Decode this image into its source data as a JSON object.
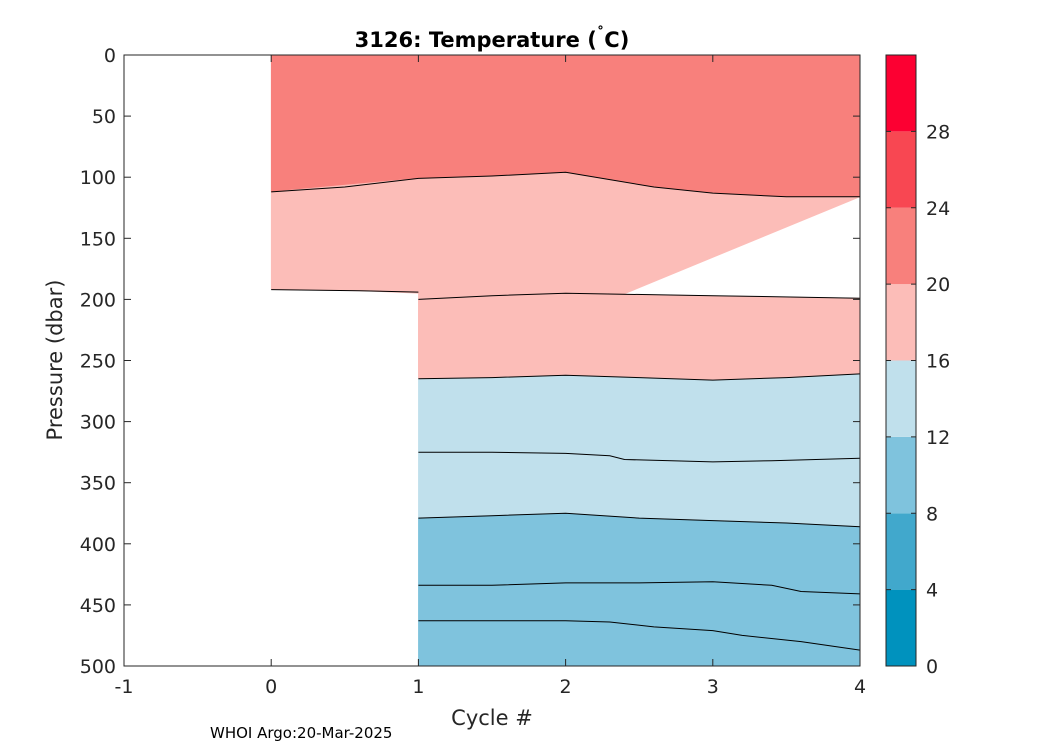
{
  "chart_data": {
    "type": "contour",
    "title_main": "3126:  Temperature (",
    "title_degree": "˚",
    "title_end": "C)",
    "xlabel": "Cycle #",
    "ylabel": "Pressure (dbar)",
    "xlim": [
      -1,
      4
    ],
    "ylim": [
      0,
      500
    ],
    "y_reversed": true,
    "x_ticks": [
      "-1",
      "0",
      "1",
      "2",
      "3",
      "4"
    ],
    "y_ticks": [
      "0",
      "50",
      "100",
      "150",
      "200",
      "250",
      "300",
      "350",
      "400",
      "450",
      "500"
    ],
    "colorbar": {
      "range": [
        0,
        32
      ],
      "tick_labels": [
        "0",
        "4",
        "8",
        "12",
        "16",
        "20",
        "24",
        "28"
      ],
      "bands": [
        {
          "from": 0,
          "to": 4,
          "color": "#0092be"
        },
        {
          "from": 4,
          "to": 8,
          "color": "#41a8cc"
        },
        {
          "from": 8,
          "to": 12,
          "color": "#7fc3dd"
        },
        {
          "from": 12,
          "to": 16,
          "color": "#c0e0ec"
        },
        {
          "from": 16,
          "to": 20,
          "color": "#fcbdb8"
        },
        {
          "from": 20,
          "to": 24,
          "color": "#f8807c"
        },
        {
          "from": 24,
          "to": 28,
          "color": "#f84752"
        },
        {
          "from": 28,
          "to": 32,
          "color": "#fc0032"
        }
      ]
    },
    "data_extent": [
      {
        "x": 0,
        "bottom": 192
      },
      {
        "x": 1,
        "bottom": 500
      }
    ],
    "fill_regions": [
      {
        "name": "20-24 band",
        "color": "#f8807c",
        "top": [
          [
            0,
            0
          ],
          [
            4,
            0
          ]
        ],
        "bottom": [
          [
            0,
            112
          ],
          [
            1,
            101
          ],
          [
            1.5,
            99
          ],
          [
            2,
            96
          ],
          [
            2.3,
            102
          ],
          [
            2.6,
            108
          ],
          [
            3,
            113
          ],
          [
            3.5,
            116
          ],
          [
            4,
            116
          ]
        ]
      },
      {
        "name": "16-20 band upper",
        "color": "#fcbdb8",
        "top": [
          [
            0,
            112
          ],
          [
            1,
            101
          ],
          [
            1.5,
            99
          ],
          [
            2,
            96
          ],
          [
            2.3,
            102
          ],
          [
            2.6,
            108
          ],
          [
            3,
            113
          ],
          [
            3.5,
            116
          ],
          [
            4,
            116
          ]
        ],
        "bottom": [
          [
            0,
            192
          ],
          [
            0.6,
            193
          ],
          [
            1,
            195
          ],
          [
            1,
            265
          ]
        ]
      },
      {
        "name": "16-20 band lower",
        "color": "#fcbdb8",
        "top": [
          [
            1,
            200
          ],
          [
            1.5,
            197
          ],
          [
            2,
            195
          ],
          [
            3,
            197
          ],
          [
            4,
            199
          ]
        ],
        "bottom": [
          [
            1,
            265
          ],
          [
            1.5,
            264
          ],
          [
            2,
            262
          ],
          [
            2.5,
            264
          ],
          [
            3,
            266
          ],
          [
            3.5,
            264
          ],
          [
            4,
            261
          ]
        ]
      },
      {
        "name": "12-16 band",
        "color": "#c0e0ec",
        "top": [
          [
            1,
            265
          ],
          [
            1.5,
            264
          ],
          [
            2,
            262
          ],
          [
            2.5,
            264
          ],
          [
            3,
            266
          ],
          [
            3.5,
            264
          ],
          [
            4,
            261
          ]
        ],
        "bottom": [
          [
            1,
            379
          ],
          [
            1.5,
            377
          ],
          [
            2,
            375
          ],
          [
            2.5,
            379
          ],
          [
            3,
            381
          ],
          [
            3.5,
            383
          ],
          [
            4,
            386
          ]
        ]
      },
      {
        "name": "8-12 band",
        "color": "#7fc3dd",
        "top": [
          [
            1,
            379
          ],
          [
            1.5,
            377
          ],
          [
            2,
            375
          ],
          [
            2.5,
            379
          ],
          [
            3,
            381
          ],
          [
            3.5,
            383
          ],
          [
            4,
            386
          ]
        ],
        "bottom": [
          [
            1,
            500
          ],
          [
            4,
            500
          ]
        ]
      }
    ],
    "contour_lines": [
      {
        "level": 20,
        "points": [
          [
            0,
            112
          ],
          [
            0.5,
            108
          ],
          [
            1,
            101
          ],
          [
            1.5,
            99
          ],
          [
            2,
            96
          ],
          [
            2.3,
            102
          ],
          [
            2.6,
            108
          ],
          [
            3,
            113
          ],
          [
            3.5,
            116
          ],
          [
            4,
            116
          ]
        ]
      },
      {
        "level": 16,
        "points": [
          [
            0,
            192
          ],
          [
            0.6,
            193
          ],
          [
            1,
            194
          ]
        ]
      },
      {
        "level": 16,
        "points": [
          [
            1,
            200
          ],
          [
            1.5,
            197
          ],
          [
            2,
            195
          ],
          [
            3,
            197
          ],
          [
            4,
            199
          ]
        ]
      },
      {
        "level": 15,
        "points": [
          [
            1,
            265
          ],
          [
            1.5,
            264
          ],
          [
            2,
            262
          ],
          [
            2.5,
            264
          ],
          [
            3,
            266
          ],
          [
            3.5,
            264
          ],
          [
            4,
            261
          ]
        ]
      },
      {
        "level": 13,
        "points": [
          [
            1,
            325
          ],
          [
            1.5,
            325
          ],
          [
            2,
            326
          ],
          [
            2.3,
            328
          ],
          [
            2.4,
            331
          ],
          [
            3,
            333
          ],
          [
            3.4,
            332
          ],
          [
            4,
            330
          ]
        ]
      },
      {
        "level": 12,
        "points": [
          [
            1,
            379
          ],
          [
            1.5,
            377
          ],
          [
            2,
            375
          ],
          [
            2.5,
            379
          ],
          [
            3,
            381
          ],
          [
            3.5,
            383
          ],
          [
            4,
            386
          ]
        ]
      },
      {
        "level": 11,
        "points": [
          [
            1,
            434
          ],
          [
            1.5,
            434
          ],
          [
            2,
            432
          ],
          [
            2.5,
            432
          ],
          [
            3,
            431
          ],
          [
            3.4,
            434
          ],
          [
            3.6,
            439
          ],
          [
            4,
            441
          ]
        ]
      },
      {
        "level": 10,
        "points": [
          [
            1,
            463
          ],
          [
            1.5,
            463
          ],
          [
            2,
            463
          ],
          [
            2.3,
            464
          ],
          [
            2.6,
            468
          ],
          [
            3,
            471
          ],
          [
            3.2,
            475
          ],
          [
            3.6,
            480
          ],
          [
            4,
            487
          ]
        ]
      }
    ]
  },
  "footer": "WHOI Argo:20-Mar-2025"
}
